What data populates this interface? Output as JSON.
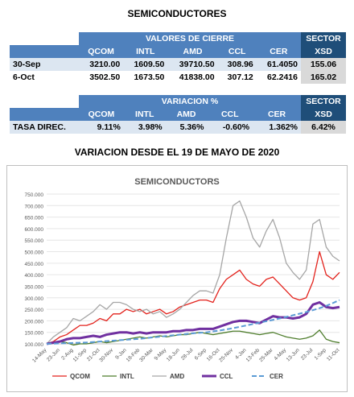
{
  "title": "SEMICONDUCTORES",
  "tables": [
    {
      "header": "VALORES DE CIERRE",
      "sector": "SECTOR",
      "columns": [
        "QCOM",
        "INTL",
        "AMD",
        "CCL",
        "CER",
        "XSD"
      ],
      "rows": [
        [
          "30-Sep",
          "3210.00",
          "1609.50",
          "39710.50",
          "308.96",
          "61.4050",
          "155.06"
        ],
        [
          "6-Oct",
          "3502.50",
          "1673.50",
          "41838.00",
          "307.12",
          "62.2416",
          "165.02"
        ]
      ]
    },
    {
      "header": "VARIACION %",
      "sector": "SECTOR",
      "columns": [
        "QCOM",
        "INTL",
        "AMD",
        "CCL",
        "CER",
        "XSD"
      ],
      "rows": [
        [
          "TASA DIREC.",
          "9.11%",
          "3.98%",
          "5.36%",
          "-0.60%",
          "1.362%",
          "6.42%"
        ]
      ]
    }
  ],
  "chart_heading": "VARIACION DESDE EL 19 DE MAYO DE 2020",
  "chart_data": {
    "type": "line",
    "title": "SEMICONDUCTORS",
    "categories": [
      "14-May",
      null,
      "23-Jun",
      null,
      "2-Aug",
      null,
      "11-Sep",
      null,
      "21-Oct",
      null,
      "30-Nov",
      null,
      "9-Jan",
      null,
      "18-Feb",
      null,
      "30-Mar",
      null,
      "9-May",
      null,
      "18-Jun",
      null,
      "28-Jul",
      null,
      "6-Sep",
      null,
      "16-Oct",
      null,
      "25-Nov",
      null,
      "4-Jan",
      null,
      "13-Feb",
      null,
      "25-Mar",
      null,
      "4-May",
      null,
      "13-Jun",
      null,
      "23-Jul",
      null,
      "1-Sep",
      null,
      "11-Oct"
    ],
    "ylim": [
      100,
      750
    ],
    "yticks": [
      {
        "value": 100,
        "label": "100.000"
      },
      {
        "value": 150,
        "label": "150.000"
      },
      {
        "value": 200,
        "label": "200.000"
      },
      {
        "value": 250,
        "label": "250.000"
      },
      {
        "value": 300,
        "label": "300.000"
      },
      {
        "value": 350,
        "label": "350.000"
      },
      {
        "value": 400,
        "label": "400.000"
      },
      {
        "value": 450,
        "label": "450.000"
      },
      {
        "value": 500,
        "label": "500.000"
      },
      {
        "value": 550,
        "label": "550.000"
      },
      {
        "value": 600,
        "label": "600.000"
      },
      {
        "value": 650,
        "label": "650.000"
      },
      {
        "value": 700,
        "label": "700.000"
      },
      {
        "value": 750,
        "label": "750.000"
      }
    ],
    "grid": true,
    "legend": "bottom",
    "series": [
      {
        "name": "QCOM",
        "color": "#e3221c",
        "width": 1.3,
        "values": [
          100,
          110,
          130,
          140,
          160,
          180,
          180,
          190,
          210,
          200,
          230,
          230,
          250,
          240,
          250,
          230,
          240,
          250,
          230,
          240,
          260,
          270,
          280,
          290,
          290,
          280,
          340,
          380,
          400,
          420,
          380,
          360,
          350,
          380,
          390,
          360,
          330,
          300,
          290,
          300,
          370,
          500,
          400,
          380,
          410
        ]
      },
      {
        "name": "INTL",
        "color": "#4e7d2c",
        "width": 1.3,
        "values": [
          100,
          105,
          110,
          105,
          95,
          100,
          100,
          105,
          110,
          105,
          110,
          115,
          120,
          125,
          130,
          125,
          130,
          135,
          130,
          135,
          140,
          140,
          145,
          150,
          145,
          140,
          145,
          150,
          155,
          155,
          150,
          145,
          140,
          145,
          150,
          140,
          130,
          125,
          120,
          125,
          135,
          160,
          120,
          110,
          105
        ]
      },
      {
        "name": "AMD",
        "color": "#a6a6a6",
        "width": 1.3,
        "values": [
          100,
          130,
          150,
          170,
          210,
          200,
          220,
          240,
          270,
          250,
          280,
          280,
          270,
          250,
          240,
          250,
          230,
          240,
          215,
          230,
          250,
          280,
          310,
          330,
          330,
          320,
          400,
          560,
          700,
          720,
          650,
          560,
          520,
          590,
          640,
          560,
          450,
          410,
          380,
          420,
          620,
          640,
          520,
          480,
          460
        ]
      },
      {
        "name": "CCL",
        "color": "#7030a0",
        "width": 3,
        "values": [
          100,
          105,
          110,
          120,
          125,
          125,
          130,
          135,
          130,
          140,
          145,
          150,
          150,
          145,
          150,
          145,
          150,
          150,
          150,
          155,
          155,
          160,
          160,
          165,
          165,
          165,
          175,
          185,
          195,
          200,
          200,
          195,
          190,
          205,
          220,
          215,
          215,
          210,
          215,
          230,
          270,
          280,
          260,
          255,
          260
        ]
      },
      {
        "name": "CER",
        "color": "#5b9bd5",
        "width": 2,
        "dashed": true,
        "values": [
          100,
          101,
          102,
          103,
          104,
          105,
          106,
          108,
          110,
          112,
          114,
          116,
          118,
          120,
          122,
          125,
          128,
          131,
          134,
          137,
          140,
          143,
          146,
          148,
          150,
          154,
          158,
          163,
          168,
          174,
          180,
          186,
          192,
          198,
          204,
          210,
          217,
          224,
          231,
          238,
          246,
          255,
          265,
          277,
          290
        ]
      }
    ]
  }
}
